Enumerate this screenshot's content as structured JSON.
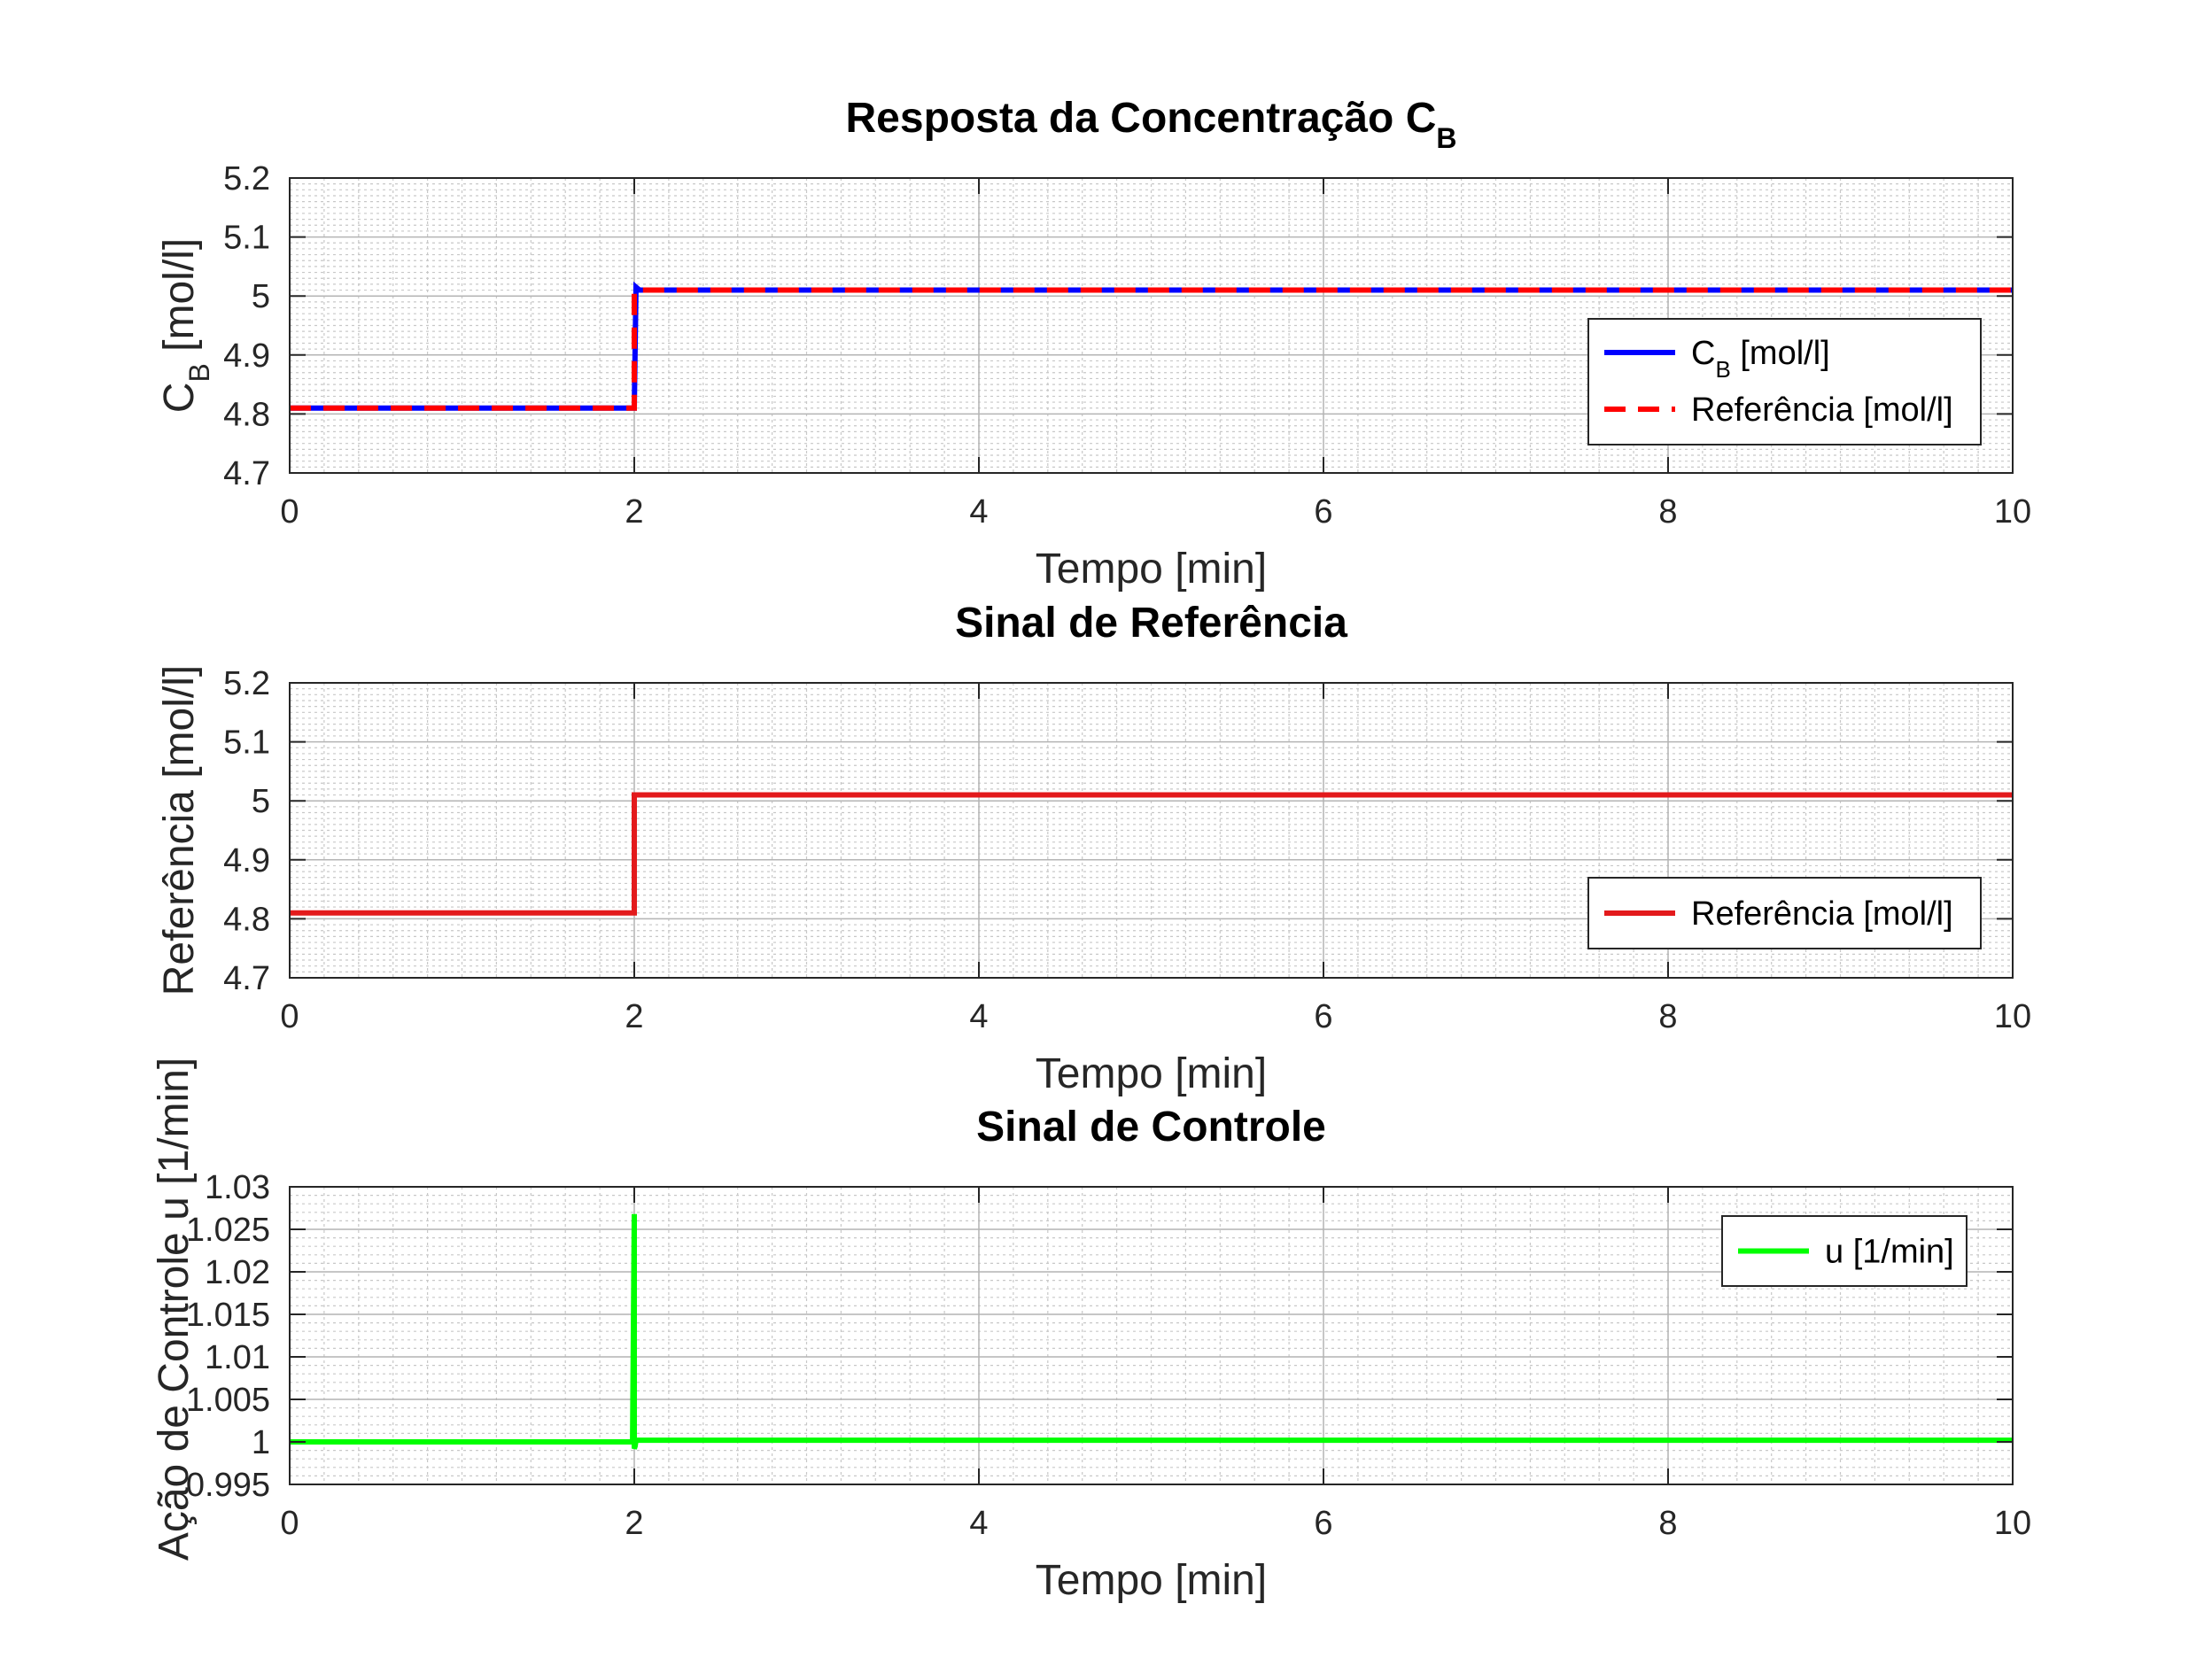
{
  "chart_data": [
    {
      "type": "line",
      "title": "Resposta da Concentração C",
      "title_sub": "B",
      "xlabel": "Tempo [min]",
      "ylabel": "C",
      "ylabel_sub": "B",
      "ylabel_suffix": " [mol/l]",
      "xlim": [
        0,
        10
      ],
      "ylim": [
        4.7,
        5.2
      ],
      "xticks": [
        0,
        2,
        4,
        6,
        8,
        10
      ],
      "yticks": [
        4.7,
        4.8,
        4.9,
        5.0,
        5.1,
        5.2
      ],
      "ytick_labels": [
        "4.7",
        "4.8",
        "4.9",
        "5",
        "5.1",
        "5.2"
      ],
      "grid": true,
      "minor_grid": true,
      "legend_position": "center-right",
      "series": [
        {
          "name": "C",
          "name_sub": "B",
          "name_suffix": " [mol/l]",
          "color": "#0000ff",
          "style": "solid",
          "x": [
            0,
            2.0,
            2.01,
            2.03,
            10
          ],
          "y": [
            4.81,
            4.81,
            5.015,
            5.01,
            5.01
          ]
        },
        {
          "name": "Referência [mol/l]",
          "color": "#ff0000",
          "style": "dashed",
          "x": [
            0,
            2.0,
            2.0,
            10
          ],
          "y": [
            4.81,
            4.81,
            5.01,
            5.01
          ]
        }
      ]
    },
    {
      "type": "line",
      "title": "Sinal de Referência",
      "xlabel": "Tempo [min]",
      "ylabel": "Referência [mol/l]",
      "xlim": [
        0,
        10
      ],
      "ylim": [
        4.7,
        5.2
      ],
      "xticks": [
        0,
        2,
        4,
        6,
        8,
        10
      ],
      "yticks": [
        4.7,
        4.8,
        4.9,
        5.0,
        5.1,
        5.2
      ],
      "ytick_labels": [
        "4.7",
        "4.8",
        "4.9",
        "5",
        "5.1",
        "5.2"
      ],
      "grid": true,
      "minor_grid": true,
      "legend_position": "bottom-right",
      "series": [
        {
          "name": "Referência [mol/l]",
          "color": "#e31a1c",
          "style": "solid",
          "x": [
            0,
            2.0,
            2.0,
            10
          ],
          "y": [
            4.81,
            4.81,
            5.01,
            5.01
          ]
        }
      ]
    },
    {
      "type": "line",
      "title": "Sinal de Controle",
      "xlabel": "Tempo [min]",
      "ylabel": "Ação de Controle u [1/min]",
      "xlim": [
        0,
        10
      ],
      "ylim": [
        0.995,
        1.03
      ],
      "xticks": [
        0,
        2,
        4,
        6,
        8,
        10
      ],
      "yticks": [
        0.995,
        1.0,
        1.005,
        1.01,
        1.015,
        1.02,
        1.025,
        1.03
      ],
      "ytick_labels": [
        "0.995",
        "1",
        "1.005",
        "1.01",
        "1.015",
        "1.02",
        "1.025",
        "1.03"
      ],
      "grid": true,
      "minor_grid": true,
      "legend_position": "top-right",
      "series": [
        {
          "name": "u [1/min]",
          "color": "#00ff00",
          "style": "solid",
          "x": [
            0,
            1.99,
            2.0,
            2.0,
            2.005,
            2.01,
            10
          ],
          "y": [
            1.0,
            1.0,
            1.0268,
            0.9992,
            0.9995,
            1.0002,
            1.0002
          ]
        }
      ]
    }
  ]
}
